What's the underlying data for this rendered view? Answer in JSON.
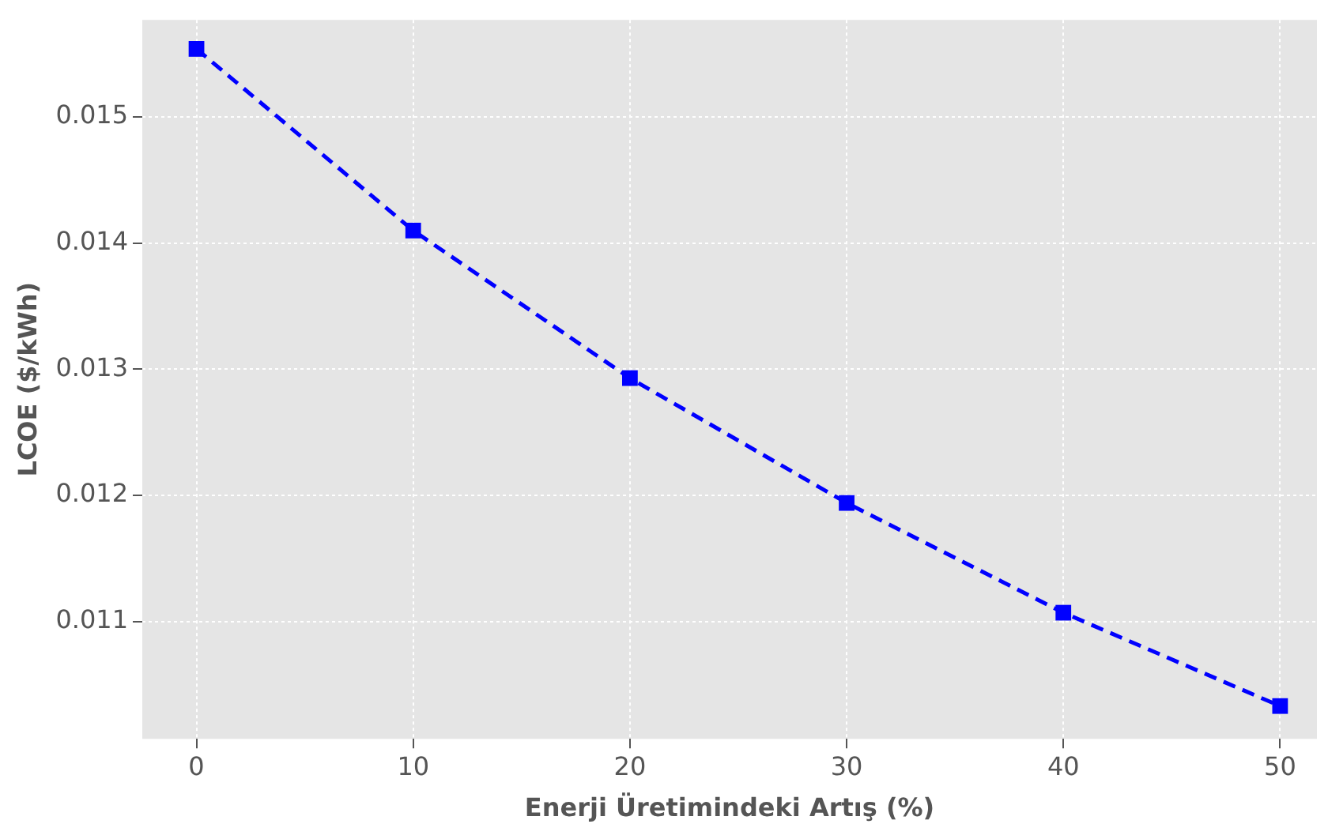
{
  "chart_data": {
    "type": "line",
    "xlabel": "Enerji Üretimindeki Artış (%)",
    "ylabel": "LCOE ($/kWh)",
    "x": [
      0,
      10,
      20,
      30,
      40,
      50
    ],
    "series": [
      {
        "color": "#0000ff",
        "values": [
          0.01554,
          0.0141,
          0.01293,
          0.01194,
          0.01107,
          0.01033
        ]
      }
    ],
    "xlim": [
      -2.5,
      51.7
    ],
    "xticks": [
      0,
      10,
      20,
      30,
      40,
      50
    ],
    "ylim": [
      0.01007,
      0.01577
    ],
    "yticks": [
      0.011,
      0.012,
      0.013,
      0.014,
      0.015
    ],
    "grid": true,
    "legend": false,
    "marker": "square",
    "line_style": "dashed"
  }
}
